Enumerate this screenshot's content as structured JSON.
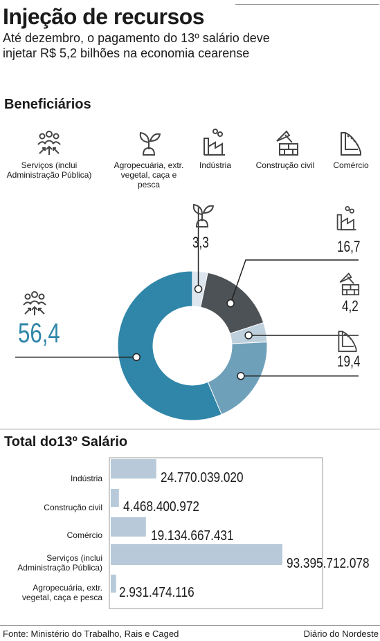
{
  "header": {
    "title": "Injeção de recursos",
    "subtitle_line1": "Até dezembro, o pagamento do 13º salário deve",
    "subtitle_line2": "injetar R$ 5,2 bilhões na economia cearense"
  },
  "beneficiaries": {
    "title": "Beneficiários",
    "categories": [
      {
        "label": "Serviços (inclui Administração Pública)",
        "icon": "people-icon"
      },
      {
        "label": "Agropecuária, extr. vegetal, caça e pesca",
        "icon": "plant-icon"
      },
      {
        "label": "Indústria",
        "icon": "factory-icon"
      },
      {
        "label": "Construção civil",
        "icon": "construction-icon"
      },
      {
        "label": "Comércio",
        "icon": "shop-icon"
      }
    ]
  },
  "chart_data": [
    {
      "type": "pie",
      "labels": [
        "Serviços (inclui Administração Pública)",
        "Agropecuária, extr. vegetal, caça e pesca",
        "Indústria",
        "Construção civil",
        "Comércio"
      ],
      "values": [
        56.4,
        3.3,
        16.7,
        4.2,
        19.4
      ],
      "value_labels": [
        "56,4",
        "3,3",
        "16,7",
        "4,2",
        "19,4"
      ],
      "colors": [
        "#2f86a8",
        "#dde6ee",
        "#4d5256",
        "#bfd0dd",
        "#6fa0ba"
      ],
      "donut": true
    },
    {
      "type": "bar",
      "title": "Total do13º Salário",
      "orientation": "horizontal",
      "categories": [
        "Indústria",
        "Construção civil",
        "Comércio",
        "Serviços (inclui Administração Pública)",
        "Agropecuária, extr. vegetal, caça e pesca"
      ],
      "values": [
        24770039020,
        4468400972,
        19134667431,
        93395712078,
        2931474116
      ],
      "value_labels": [
        "24.770.039.020",
        "4.468.400.972",
        "19.134.667.431",
        "93.395.712.078",
        "2.931.474.116"
      ],
      "color": "#b8cad9"
    }
  ],
  "footer": {
    "source": "Fonte: Ministério do Trabalho, Rais e Caged",
    "brand": "Diário do Nordeste"
  }
}
